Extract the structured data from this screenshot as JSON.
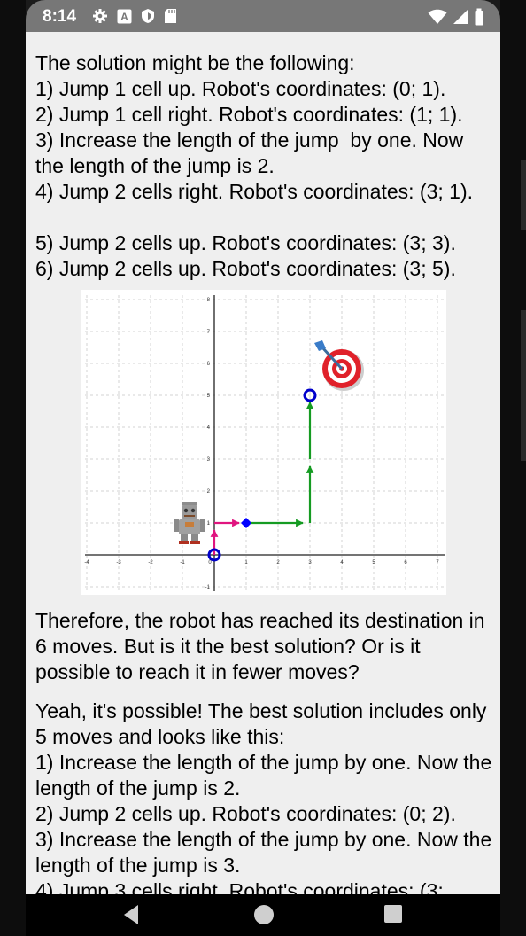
{
  "status_bar": {
    "time": "8:14",
    "left_icons": [
      "gear-icon",
      "a-badge-icon",
      "shield-icon",
      "sd-card-icon"
    ],
    "right_icons": [
      "wifi-icon",
      "signal-icon",
      "battery-icon"
    ]
  },
  "content": {
    "intro": "The solution might be the following:",
    "steps_first": [
      "1) Jump 1 cell up. Robot's coordinates: (0; 1).",
      "2) Jump 1 cell right. Robot's coordinates: (1; 1).",
      "3) Increase the length of the jump  by one. Now the length of the jump is 2.",
      "4) Jump 2 cells right. Robot's coordinates: (3; 1).",
      "5) Jump 2 cells up. Robot's coordinates: (3; 3).",
      "6) Jump 2 cells up. Robot's coordinates: (3; 5)."
    ],
    "summary": "Therefore, the robot has reached its destination in 6 moves. But is it the best solution? Or is it possible to reach it in fewer moves?",
    "best_intro": "Yeah, it's possible! The best solution includes only 5 moves and looks like this:",
    "steps_second": [
      "1) Increase the length of the jump by one. Now the length of the jump is 2.",
      "2) Jump 2 cells up. Robot's coordinates: (0; 2).",
      "3) Increase the length of the jump by one. Now the length of the jump is 3.",
      "4) Jump 3 cells right. Robot's coordinates: (3;"
    ]
  },
  "chart_data": {
    "type": "line",
    "x_ticks": [
      "-4",
      "-3",
      "-2",
      "-1",
      "0",
      "1",
      "2",
      "3",
      "4",
      "5",
      "6",
      "7"
    ],
    "y_ticks": [
      "-1",
      "1",
      "2",
      "3",
      "4",
      "5",
      "6",
      "7",
      "8"
    ],
    "xlim": [
      -4,
      7
    ],
    "ylim": [
      -1,
      8
    ],
    "grid": true,
    "start": {
      "x": 0,
      "y": 0
    },
    "target": {
      "x": 3,
      "y": 5
    },
    "waypoint": {
      "x": 1,
      "y": 1
    },
    "paths": [
      {
        "color": "#e0157f",
        "points": [
          [
            0,
            0
          ],
          [
            0,
            1
          ],
          [
            1,
            1
          ]
        ]
      },
      {
        "color": "#159b22",
        "points": [
          [
            1,
            1
          ],
          [
            3,
            1
          ],
          [
            3,
            3
          ],
          [
            3,
            5
          ]
        ]
      }
    ],
    "colors": {
      "start": "#0000cc",
      "waypoint": "#0000ff"
    }
  }
}
